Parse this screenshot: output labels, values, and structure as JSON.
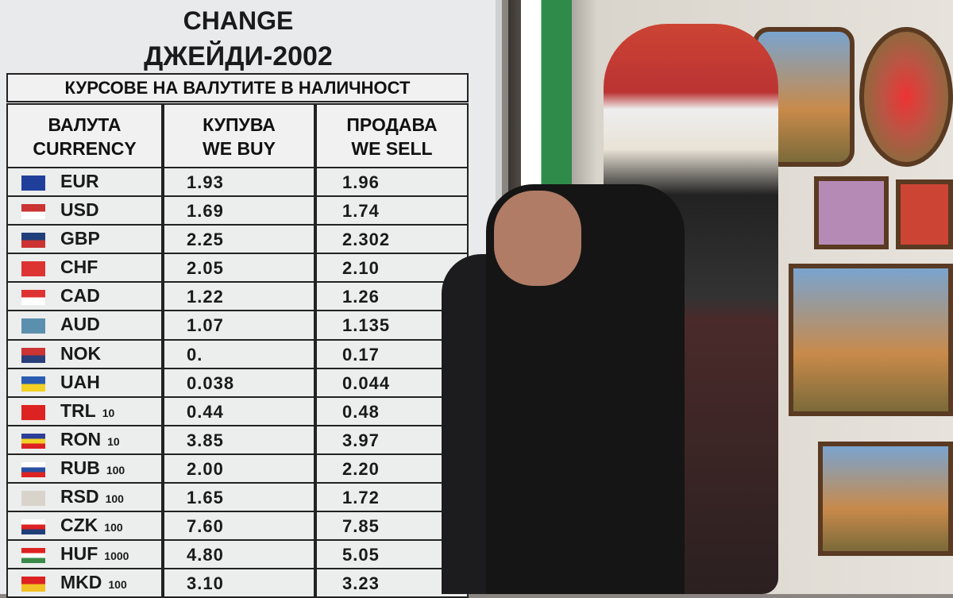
{
  "board": {
    "title": "CHANGE",
    "name": "ДЖЕЙДИ-2002",
    "subtitle": "КУРСОВЕ НА ВАЛУТИТЕ В НАЛИЧНОСТ",
    "headers": [
      {
        "l1": "ВАЛУТА",
        "l2": "CURRENCY"
      },
      {
        "l1": "КУПУВА",
        "l2": "WE BUY"
      },
      {
        "l1": "ПРОДАВА",
        "l2": "WE SELL"
      }
    ],
    "rows": [
      {
        "code": "EUR",
        "unit": "",
        "buy": "1.93",
        "sell": "1.96",
        "flag": [
          "#1f3f9a"
        ]
      },
      {
        "code": "USD",
        "unit": "",
        "buy": "1.69",
        "sell": "1.74",
        "flag": [
          "#c33",
          "#fff"
        ]
      },
      {
        "code": "GBP",
        "unit": "",
        "buy": "2.25",
        "sell": "2.302",
        "flag": [
          "#1f3f7a",
          "#c33"
        ]
      },
      {
        "code": "CHF",
        "unit": "",
        "buy": "2.05",
        "sell": "2.10",
        "flag": [
          "#d33"
        ]
      },
      {
        "code": "CAD",
        "unit": "",
        "buy": "1.22",
        "sell": "1.26",
        "flag": [
          "#d33",
          "#fff"
        ]
      },
      {
        "code": "AUD",
        "unit": "",
        "buy": "1.07",
        "sell": "1.135",
        "flag": [
          "#5a8fae"
        ]
      },
      {
        "code": "NOK",
        "unit": "",
        "buy": "0.",
        "sell": "0.17",
        "flag": [
          "#c33",
          "#2a3f7a"
        ]
      },
      {
        "code": "UAH",
        "unit": "",
        "buy": "0.038",
        "sell": "0.044",
        "flag": [
          "#2a5db0",
          "#f2d024"
        ]
      },
      {
        "code": "TRL",
        "unit": "10",
        "buy": "0.44",
        "sell": "0.48",
        "flag": [
          "#d22"
        ]
      },
      {
        "code": "RON",
        "unit": "10",
        "buy": "3.85",
        "sell": "3.97",
        "flag": [
          "#2a3f9a",
          "#f2d024",
          "#d22"
        ]
      },
      {
        "code": "RUB",
        "unit": "100",
        "buy": "2.00",
        "sell": "2.20",
        "flag": [
          "#fff",
          "#2a4fa0",
          "#d22"
        ]
      },
      {
        "code": "RSD",
        "unit": "100",
        "buy": "1.65",
        "sell": "1.72",
        "flag": [
          "#d8d4cc"
        ]
      },
      {
        "code": "CZK",
        "unit": "100",
        "buy": "7.60",
        "sell": "7.85",
        "flag": [
          "#fff",
          "#d22",
          "#1f3f7a"
        ]
      },
      {
        "code": "HUF",
        "unit": "1000",
        "buy": "4.80",
        "sell": "5.05",
        "flag": [
          "#d22",
          "#fff",
          "#3a8a4a"
        ]
      },
      {
        "code": "MKD",
        "unit": "100",
        "buy": "3.10",
        "sell": "3.23",
        "flag": [
          "#d22",
          "#f2c024"
        ]
      }
    ]
  }
}
